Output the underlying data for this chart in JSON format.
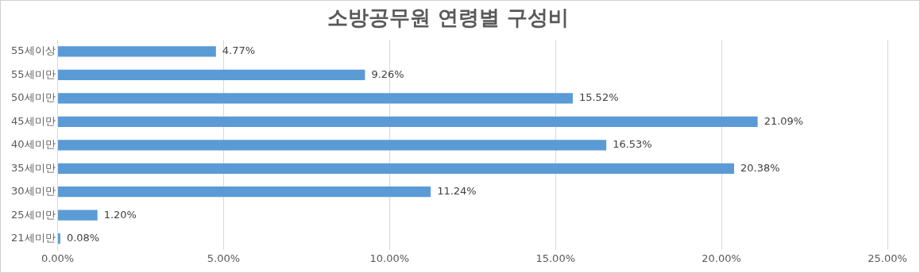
{
  "chart_data": {
    "type": "bar",
    "orientation": "horizontal",
    "title": "소방공무원 연령별 구성비",
    "categories": [
      "55세이상",
      "55세미만",
      "50세미만",
      "45세미만",
      "40세미만",
      "35세미만",
      "30세미만",
      "25세미만",
      "21세미만"
    ],
    "values": [
      4.77,
      9.26,
      15.52,
      21.09,
      16.53,
      20.38,
      11.24,
      1.2,
      0.08
    ],
    "value_labels": [
      "4.77%",
      "9.26%",
      "15.52%",
      "21.09%",
      "16.53%",
      "20.38%",
      "11.24%",
      "1.20%",
      "0.08%"
    ],
    "color": "#5b9bd5",
    "xlim": [
      0,
      25
    ],
    "xticks": [
      {
        "value": 0,
        "label": "0.00%"
      },
      {
        "value": 5,
        "label": "5.00%"
      },
      {
        "value": 10,
        "label": "10.00%"
      },
      {
        "value": 15,
        "label": "15.00%"
      },
      {
        "value": 20,
        "label": "20.00%"
      },
      {
        "value": 25,
        "label": "25.00%"
      }
    ],
    "grid": "x"
  }
}
